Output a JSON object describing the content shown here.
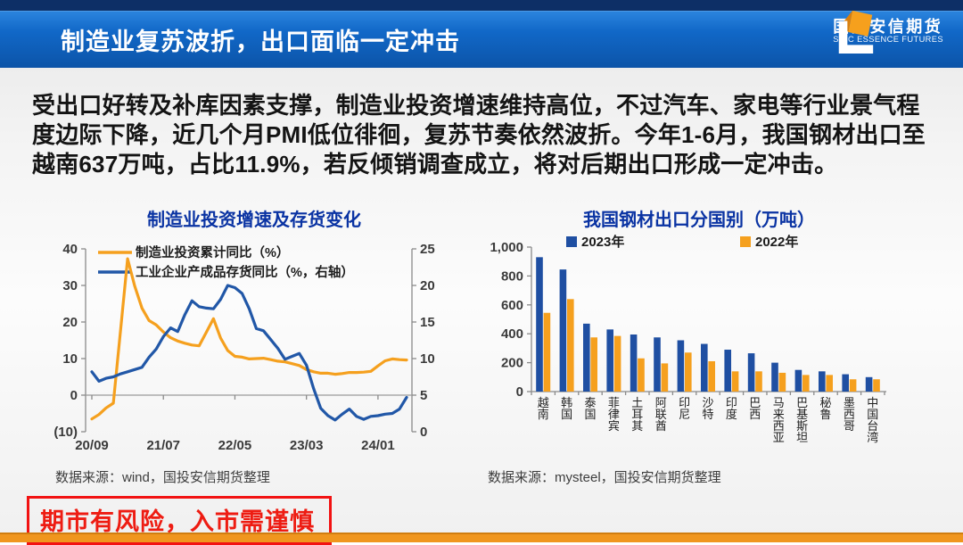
{
  "header": {
    "title": "制造业复苏波折，出口面临一定冲击",
    "logo": {
      "name_cn": "国投安信期货",
      "name_en": "SDIC ESSENCE FUTURES"
    }
  },
  "summary": "受出口好转及补库因素支撑，制造业投资增速维持高位，不过汽车、家电等行业景气程度边际下降，近几个月PMI低位徘徊，复苏节奏依然波折。今年1-6月，我国钢材出口至越南637万吨，占比11.9%，若反倾销调查成立，将对后期出口形成一定冲击。",
  "footer": {
    "warning": "期市有风险，入市需谨慎"
  },
  "colors": {
    "header_blue": "#0c54a8",
    "title_blue": "#0a33a3",
    "series_blue": "#1f4fa2",
    "series_orange": "#f5a01e",
    "warning_red": "#ee1c12",
    "bottom_bar_orange": "#f0961e"
  },
  "chart_data": [
    {
      "type": "line",
      "title": "制造业投资增速及存货变化",
      "source": "数据来源：wind，国投安信期货整理",
      "x_ticks": [
        "20/09",
        "21/07",
        "22/05",
        "23/03",
        "24/01"
      ],
      "x_tick_indices": [
        0,
        10,
        20,
        30,
        40
      ],
      "left_axis": {
        "ticks": [
          "40",
          "30",
          "20",
          "10",
          "0",
          "(10)"
        ],
        "range": [
          -10,
          40
        ]
      },
      "right_axis": {
        "ticks": [
          "25",
          "20",
          "15",
          "10",
          "5",
          "0"
        ],
        "range": [
          0,
          25
        ]
      },
      "legend_position": "top-left-inside",
      "grid": false,
      "series": [
        {
          "name": "制造业投资累计同比（%）",
          "axis": "left",
          "color": "#f5a01e",
          "values": [
            -6.5,
            -5.3,
            -3.5,
            -2.2,
            17.5,
            37.3,
            29.8,
            23.8,
            20.4,
            19.2,
            17.3,
            15.7,
            14.8,
            14.2,
            13.7,
            13.5,
            17.2,
            20.9,
            15.6,
            12.2,
            10.6,
            10.4,
            9.9,
            10.0,
            10.1,
            9.7,
            9.3,
            9.1,
            8.6,
            8.1,
            7.0,
            6.4,
            6.0,
            6.0,
            5.7,
            5.9,
            6.2,
            6.2,
            6.3,
            6.5,
            8.0,
            9.4,
            9.9,
            9.7,
            9.6
          ]
        },
        {
          "name": "工业企业产成品存货同比（%，右轴）",
          "axis": "right",
          "color": "#2157a7",
          "values": [
            8.2,
            6.9,
            7.3,
            7.5,
            7.9,
            8.2,
            8.5,
            8.8,
            10.2,
            11.3,
            13.0,
            14.2,
            13.7,
            16.0,
            17.9,
            17.1,
            16.9,
            16.8,
            18.1,
            20.0,
            19.7,
            18.9,
            16.8,
            14.1,
            13.8,
            12.6,
            11.4,
            9.9,
            10.3,
            10.7,
            9.1,
            5.9,
            3.2,
            2.2,
            1.6,
            2.4,
            3.1,
            2.1,
            1.7,
            2.1,
            2.2,
            2.4,
            2.5,
            3.1,
            4.7
          ]
        }
      ]
    },
    {
      "type": "bar",
      "title": "我国钢材出口分国别（万吨）",
      "source": "数据来源：mysteel，国投安信期货整理",
      "categories": [
        "越南",
        "韩国",
        "泰国",
        "菲律宾",
        "土耳其",
        "阿联酋",
        "印尼",
        "沙特",
        "印度",
        "巴西",
        "马来西亚",
        "巴基斯坦",
        "秘鲁",
        "墨西哥",
        "中国台湾"
      ],
      "y_ticks": [
        "0",
        "200",
        "400",
        "600",
        "800",
        "1,000"
      ],
      "ylim": [
        0,
        1000
      ],
      "grid": false,
      "legend_position": "top-inside",
      "series": [
        {
          "name": "2023年",
          "color": "#1f4fa2",
          "values": [
            930,
            845,
            470,
            430,
            395,
            375,
            355,
            330,
            290,
            265,
            200,
            150,
            140,
            120,
            100
          ]
        },
        {
          "name": "2022年",
          "color": "#f5a01e",
          "values": [
            545,
            640,
            375,
            385,
            230,
            195,
            270,
            210,
            140,
            140,
            130,
            115,
            115,
            85,
            85
          ]
        }
      ]
    }
  ]
}
